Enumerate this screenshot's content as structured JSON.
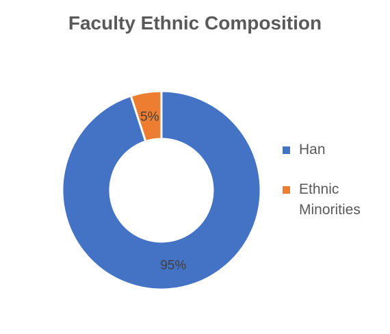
{
  "chart_data": {
    "type": "pie",
    "variant": "doughnut",
    "title": "Faculty Ethnic Composition",
    "slices": [
      {
        "label": "Ethnic Minorities",
        "value": 5,
        "display": "5%",
        "color": "#ed7d31"
      },
      {
        "label": "Han",
        "value": 95,
        "display": "95%",
        "color": "#4472c4"
      }
    ],
    "legend": {
      "placement": "right",
      "items": [
        {
          "label": "Han",
          "color": "#4472c4"
        },
        {
          "label": "Ethnic Minorities",
          "color": "#ed7d31"
        }
      ]
    }
  }
}
